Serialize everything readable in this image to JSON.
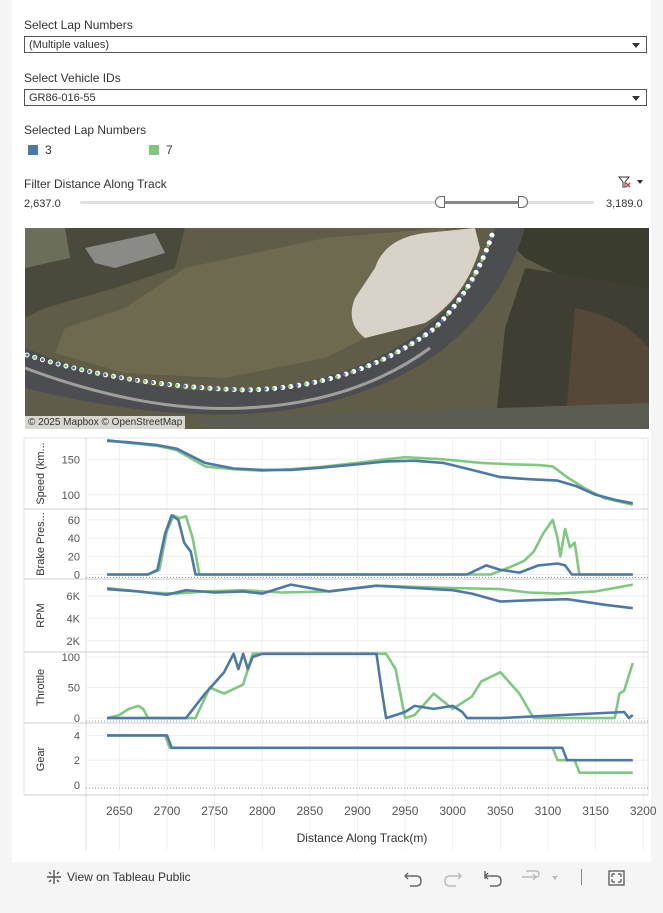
{
  "filters": {
    "lap_label": "Select Lap Numbers",
    "lap_value": "(Multiple values)",
    "vehicle_label": "Select Vehicle IDs",
    "vehicle_value": "GR86-016-55",
    "legend_title": "Selected Lap Numbers",
    "legend": [
      {
        "name": "3",
        "color": "#4e79a7"
      },
      {
        "name": "7",
        "color": "#7fc97f"
      }
    ],
    "distance_label": "Filter Distance Along Track",
    "distance_min": "2,637.0",
    "distance_max": "3,189.0"
  },
  "map": {
    "attribution": "© 2025 Mapbox  © OpenStreetMap"
  },
  "footer": {
    "view_label": "View on Tableau Public"
  },
  "chart_data": {
    "type": "line",
    "x_label": "Distance Along Track(m)",
    "x_ticks": [
      2650,
      2700,
      2750,
      2800,
      2850,
      2900,
      2950,
      3000,
      3050,
      3100,
      3150,
      3200
    ],
    "xlim": [
      2615,
      3205
    ],
    "panels": [
      {
        "ylabel": "Speed (km...",
        "ylim": [
          80,
          180
        ],
        "ticks": [
          100,
          150
        ],
        "series": [
          {
            "name": "3",
            "x": [
              2637,
              2660,
              2690,
              2710,
              2740,
              2770,
              2800,
              2830,
              2860,
              2900,
              2930,
              2960,
              2990,
              3020,
              3050,
              3080,
              3110,
              3130,
              3150,
              3170,
              3189
            ],
            "y": [
              176,
              174,
              170,
              165,
              145,
              137,
              135,
              135,
              138,
              143,
              147,
              148,
              145,
              135,
              125,
              122,
              120,
              112,
              100,
              93,
              88
            ]
          },
          {
            "name": "7",
            "x": [
              2637,
              2660,
              2690,
              2710,
              2740,
              2770,
              2800,
              2830,
              2860,
              2900,
              2930,
              2950,
              2990,
              3030,
              3060,
              3090,
              3105,
              3120,
              3140,
              3160,
              3189
            ],
            "y": [
              177,
              173,
              169,
              163,
              140,
              136,
              134,
              136,
              139,
              145,
              150,
              153,
              150,
              145,
              143,
              142,
              140,
              125,
              108,
              95,
              86
            ]
          }
        ]
      },
      {
        "ylabel": "Brake Pres...",
        "ylim": [
          -5,
          72
        ],
        "ticks": [
          0,
          20,
          40,
          60
        ],
        "series": [
          {
            "name": "3",
            "x": [
              2637,
              2660,
              2680,
              2690,
              2698,
              2705,
              2712,
              2718,
              2725,
              2730,
              3015,
              3035,
              3050,
              3070,
              3090,
              3110,
              3118,
              3125,
              3189
            ],
            "y": [
              0,
              0,
              0,
              5,
              45,
              65,
              60,
              35,
              25,
              0,
              0,
              10,
              5,
              2,
              10,
              12,
              10,
              0,
              0
            ]
          },
          {
            "name": "7",
            "x": [
              2637,
              2680,
              2692,
              2700,
              2707,
              2713,
              2720,
              2727,
              2734,
              3040,
              3060,
              3075,
              3085,
              3095,
              3105,
              3110,
              3113,
              3118,
              3123,
              3128,
              3133,
              3189
            ],
            "y": [
              0,
              0,
              5,
              48,
              65,
              62,
              64,
              40,
              0,
              0,
              8,
              15,
              25,
              45,
              60,
              40,
              20,
              50,
              30,
              35,
              0,
              0
            ]
          }
        ]
      },
      {
        "ylabel": "RPM",
        "ylim": [
          1000,
          7500
        ],
        "ticks_labels": [
          "2K",
          "4K",
          "6K"
        ],
        "ticks": [
          2000,
          4000,
          6000
        ],
        "series": [
          {
            "name": "3",
            "x": [
              2637,
              2670,
              2700,
              2720,
              2750,
              2780,
              2800,
              2830,
              2870,
              2920,
              2960,
              3000,
              3020,
              3050,
              3080,
              3120,
              3160,
              3189
            ],
            "y": [
              6600,
              6400,
              6100,
              6500,
              6300,
              6400,
              6200,
              7000,
              6400,
              6900,
              6700,
              6500,
              6200,
              5500,
              5600,
              5700,
              5200,
              4900
            ]
          },
          {
            "name": "7",
            "x": [
              2637,
              2680,
              2710,
              2740,
              2780,
              2820,
              2870,
              2920,
              2960,
              3000,
              3050,
              3080,
              3110,
              3150,
              3170,
              3189
            ],
            "y": [
              6700,
              6300,
              6200,
              6400,
              6500,
              6300,
              6400,
              6900,
              6800,
              6700,
              6600,
              6300,
              6200,
              6400,
              6700,
              7000
            ]
          }
        ]
      },
      {
        "ylabel": "Throttle",
        "ylim": [
          -8,
          108
        ],
        "ticks": [
          0,
          50,
          100
        ],
        "series": [
          {
            "name": "3",
            "x": [
              2637,
              2720,
              2740,
              2760,
              2770,
              2775,
              2780,
              2785,
              2790,
              2800,
              2920,
              2925,
              2930,
              2950,
              2960,
              2980,
              3000,
              3010,
              3015,
              3050,
              3180,
              3185,
              3189
            ],
            "y": [
              0,
              0,
              40,
              75,
              105,
              80,
              105,
              80,
              100,
              105,
              105,
              50,
              0,
              10,
              20,
              15,
              20,
              10,
              0,
              0,
              10,
              0,
              5
            ]
          },
          {
            "name": "7",
            "x": [
              2637,
              2650,
              2660,
              2670,
              2675,
              2680,
              2730,
              2745,
              2760,
              2780,
              2790,
              2930,
              2940,
              2950,
              2960,
              2980,
              3000,
              3020,
              3030,
              3050,
              3070,
              3085,
              3170,
              3175,
              3180,
              3185,
              3189
            ],
            "y": [
              0,
              5,
              15,
              20,
              15,
              0,
              0,
              50,
              40,
              55,
              105,
              105,
              80,
              0,
              5,
              40,
              15,
              35,
              60,
              75,
              40,
              0,
              0,
              40,
              45,
              70,
              90
            ]
          }
        ]
      },
      {
        "ylabel": "Gear",
        "ylim": [
          -0.8,
          5
        ],
        "ticks": [
          0,
          2,
          4
        ],
        "series": [
          {
            "name": "3",
            "x": [
              2637,
              2700,
              2705,
              3115,
              3120,
              3189
            ],
            "y": [
              4,
              4,
              3,
              3,
              2,
              2
            ]
          },
          {
            "name": "7",
            "x": [
              2637,
              2698,
              2703,
              3105,
              3110,
              3128,
              3133,
              3189
            ],
            "y": [
              4,
              4,
              3,
              3,
              2,
              2,
              1,
              1
            ]
          }
        ]
      }
    ]
  }
}
